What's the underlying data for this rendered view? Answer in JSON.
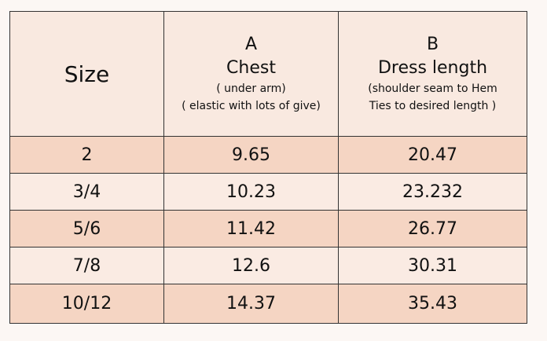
{
  "table": {
    "header": [
      {
        "title": "Size"
      },
      {
        "letter": "A",
        "title": "Chest",
        "notes": [
          "( under arm)",
          "( elastic with lots of give)"
        ]
      },
      {
        "letter": "B",
        "title": "Dress length",
        "notes": [
          "(shoulder seam to Hem",
          "Ties to desired length )"
        ]
      }
    ],
    "rows": [
      [
        "2",
        "9.65",
        "20.47"
      ],
      [
        "3/4",
        "10.23",
        "23.232"
      ],
      [
        "5/6",
        "11.42",
        "26.77"
      ],
      [
        "7/8",
        "12.6",
        "30.31"
      ],
      [
        "10/12",
        "14.37",
        "35.43"
      ]
    ]
  }
}
